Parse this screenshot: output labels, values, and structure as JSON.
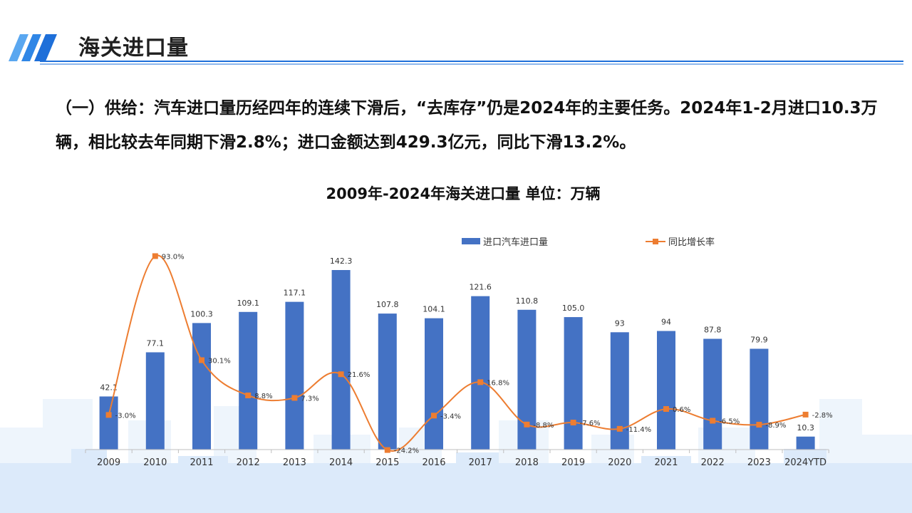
{
  "slide": {
    "title": "海关进口量",
    "intro": "（一）供给：汽车进口量历经四年的连续下滑后，“去库存”仍是2024年的主要任务。2024年1-2月进口10.3万辆，相比较去年同期下滑2.8%；进口金额达到429.3亿元，同比下滑13.2%。"
  },
  "colors": {
    "bar": "#4472c4",
    "line": "#ed7d31",
    "accent": "#1e6fd9",
    "skyline": "#e8f1fb"
  },
  "chart_data": {
    "type": "bar",
    "title": "2009年-2024年海关进口量  单位：万辆",
    "categories": [
      "2009",
      "2010",
      "2011",
      "2012",
      "2013",
      "2014",
      "2015",
      "2016",
      "2017",
      "2018",
      "2019",
      "2020",
      "2021",
      "2022",
      "2023",
      "2024YTD"
    ],
    "series": [
      {
        "name": "进口汽车进口量",
        "type": "bar",
        "values": [
          42.1,
          77.1,
          100.3,
          109.1,
          117.1,
          142.3,
          107.8,
          104.1,
          121.6,
          110.8,
          105.0,
          93,
          94,
          87.8,
          79.9,
          10.3
        ],
        "labels": [
          "42.1",
          "77.1",
          "100.3",
          "109.1",
          "117.1",
          "142.3",
          "107.8",
          "104.1",
          "121.6",
          "110.8",
          "105.0",
          "93",
          "94",
          "87.8",
          "79.9",
          "10.3"
        ]
      },
      {
        "name": "同比增长率",
        "type": "line",
        "values": [
          -3.0,
          93.0,
          30.1,
          8.8,
          7.3,
          21.6,
          -24.2,
          -3.4,
          16.8,
          -8.8,
          -7.6,
          -11.4,
          0.6,
          -6.5,
          -8.9,
          -2.8
        ],
        "labels": [
          "-3.0%",
          "93.0%",
          "30.1%",
          "8.8%",
          "7.3%",
          "21.6%",
          "-24.2%",
          "-3.4%",
          "16.8%",
          "-8.8%",
          "-7.6%",
          "-11.4%",
          "0.6%",
          "-6.5%",
          "-8.9%",
          "-2.8%"
        ]
      }
    ],
    "legend": "top"
  }
}
